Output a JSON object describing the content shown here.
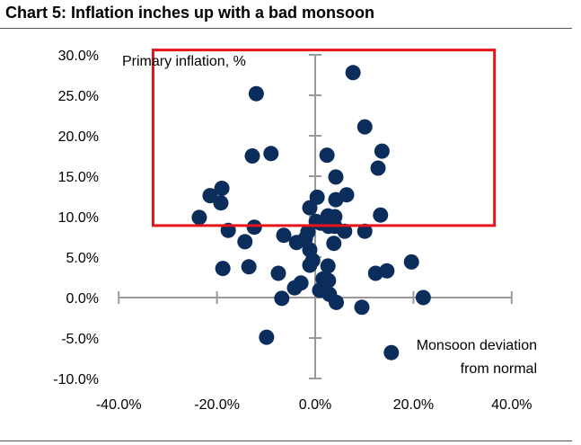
{
  "chart_data": {
    "type": "scatter",
    "title": "Chart 5: Inflation inches up with a bad monsoon",
    "ylabel": "Primary inflation, %",
    "xlabel_lines": [
      "Monsoon deviation",
      "from normal"
    ],
    "xlim": [
      -40,
      40
    ],
    "ylim": [
      -10,
      30
    ],
    "xticks": [
      -40,
      -20,
      0,
      20,
      40
    ],
    "xtick_labels": [
      "-40.0%",
      "-20.0%",
      "0.0%",
      "20.0%",
      "40.0%"
    ],
    "yticks": [
      30,
      25,
      20,
      15,
      10,
      5,
      0,
      -5,
      -10
    ],
    "ytick_labels": [
      "30.0%",
      "25.0%",
      "20.0%",
      "15.0%",
      "10.0%",
      "5.0%",
      "0.0%",
      "-5.0%",
      "-10.0%"
    ],
    "point_color": "#0b2d5b",
    "highlight_box": {
      "color": "#e8141b",
      "x_range": [
        -33,
        36.5
      ],
      "y_range": [
        8.9,
        30.6
      ]
    },
    "points": [
      [
        -12.0,
        25.2
      ],
      [
        7.7,
        27.8
      ],
      [
        10.1,
        21.1
      ],
      [
        13.6,
        18.1
      ],
      [
        12.8,
        16.0
      ],
      [
        13.3,
        10.2
      ],
      [
        -12.8,
        17.5
      ],
      [
        -9.0,
        17.8
      ],
      [
        2.4,
        17.6
      ],
      [
        4.2,
        14.9
      ],
      [
        4.2,
        12.1
      ],
      [
        6.4,
        12.7
      ],
      [
        0.4,
        12.4
      ],
      [
        -21.4,
        12.6
      ],
      [
        -19.0,
        13.5
      ],
      [
        -19.2,
        11.7
      ],
      [
        -23.6,
        9.9
      ],
      [
        -17.7,
        8.3
      ],
      [
        -12.4,
        8.7
      ],
      [
        -14.3,
        6.9
      ],
      [
        -6.4,
        7.7
      ],
      [
        -18.8,
        3.6
      ],
      [
        -13.5,
        3.8
      ],
      [
        -7.5,
        3.0
      ],
      [
        -6.8,
        -0.1
      ],
      [
        -9.9,
        -4.9
      ],
      [
        -1.1,
        11.1
      ],
      [
        0.2,
        9.4
      ],
      [
        2.6,
        10.1
      ],
      [
        4.0,
        10.0
      ],
      [
        4.0,
        8.8
      ],
      [
        6.0,
        8.2
      ],
      [
        10.1,
        8.2
      ],
      [
        -3.8,
        6.8
      ],
      [
        -2.0,
        7.3
      ],
      [
        -1.1,
        5.9
      ],
      [
        -0.5,
        4.6
      ],
      [
        -1.1,
        4.0
      ],
      [
        -2.9,
        1.8
      ],
      [
        -4.2,
        1.2
      ],
      [
        2.6,
        3.9
      ],
      [
        1.6,
        2.3
      ],
      [
        2.7,
        2.1
      ],
      [
        0.9,
        0.9
      ],
      [
        2.9,
        0.4
      ],
      [
        4.3,
        -0.6
      ],
      [
        9.5,
        -1.2
      ],
      [
        12.3,
        3.0
      ],
      [
        14.6,
        3.3
      ],
      [
        19.6,
        4.4
      ],
      [
        22.0,
        0.0
      ],
      [
        15.5,
        -6.8
      ],
      [
        3.8,
        6.7
      ],
      [
        -1.5,
        8.1
      ],
      [
        1.1,
        9.2
      ],
      [
        2.7,
        8.8
      ]
    ]
  }
}
